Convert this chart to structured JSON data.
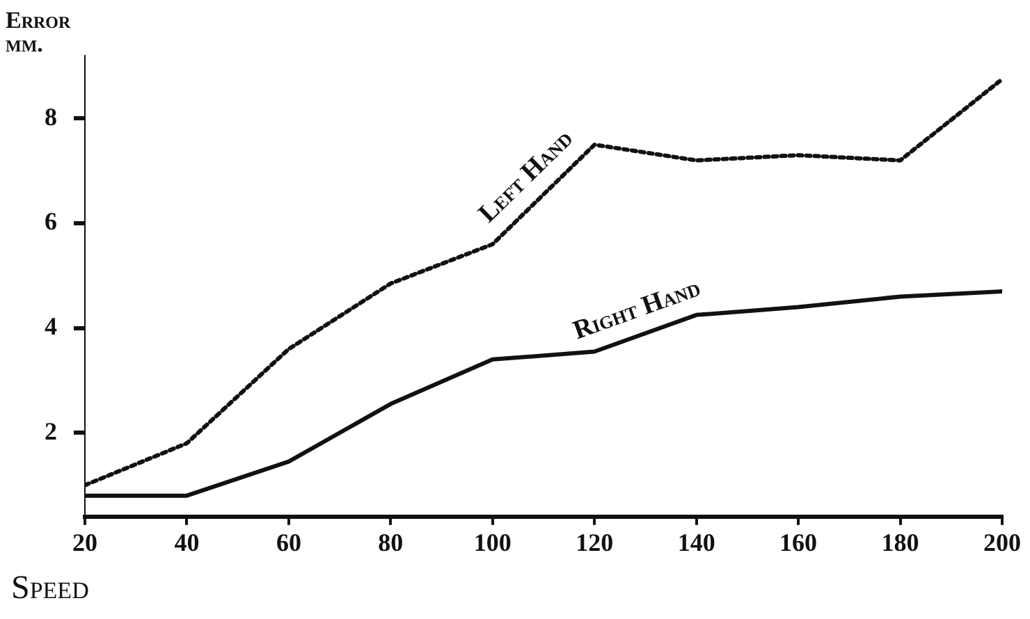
{
  "chart_data": {
    "type": "line",
    "xlabel": "Speed",
    "ylabel": "Error mm.",
    "x": [
      20,
      40,
      60,
      80,
      100,
      120,
      140,
      160,
      180,
      200
    ],
    "xlim": [
      20,
      200
    ],
    "xticks": [
      20,
      40,
      60,
      80,
      100,
      120,
      140,
      160,
      180,
      200
    ],
    "ylim": [
      0.4,
      9.2
    ],
    "yticks": [
      2,
      4,
      6,
      8
    ],
    "grid": false,
    "legend": false,
    "marker": "none",
    "series": [
      {
        "name": "Left Hand",
        "color": "#111111",
        "line_style": "dotted",
        "values": [
          1.0,
          1.8,
          3.6,
          4.85,
          5.6,
          7.5,
          7.2,
          7.3,
          7.2,
          8.75
        ]
      },
      {
        "name": "Right Hand",
        "color": "#111111",
        "line_style": "solid",
        "values": [
          0.8,
          0.8,
          1.45,
          2.55,
          3.4,
          3.55,
          4.25,
          4.4,
          4.6,
          4.7
        ]
      }
    ]
  }
}
